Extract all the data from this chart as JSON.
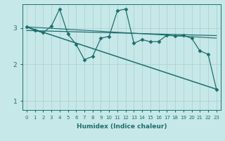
{
  "xlabel": "Humidex (Indice chaleur)",
  "bg_color": "#c6e8e8",
  "grid_color": "#b0cccc",
  "line_color": "#1e6e6e",
  "xlim": [
    -0.5,
    23.5
  ],
  "ylim": [
    0.75,
    3.65
  ],
  "yticks": [
    1,
    2,
    3
  ],
  "xticks": [
    0,
    1,
    2,
    3,
    4,
    5,
    6,
    7,
    8,
    9,
    10,
    11,
    12,
    13,
    14,
    15,
    16,
    17,
    18,
    19,
    20,
    21,
    22,
    23
  ],
  "series": [
    {
      "x": [
        0,
        1,
        2,
        3,
        4,
        5,
        6,
        7,
        8,
        9,
        10,
        11,
        12,
        13,
        14,
        15,
        16,
        17,
        18,
        19,
        20,
        21,
        22,
        23
      ],
      "y": [
        3.03,
        2.93,
        2.87,
        3.05,
        3.52,
        2.83,
        2.55,
        2.13,
        2.22,
        2.72,
        2.77,
        3.47,
        3.52,
        2.58,
        2.68,
        2.62,
        2.63,
        2.8,
        2.78,
        2.79,
        2.72,
        2.37,
        2.28,
        1.32
      ],
      "marker": "D",
      "markersize": 2.5,
      "linewidth": 0.9
    },
    {
      "x": [
        0,
        23
      ],
      "y": [
        3.03,
        1.32
      ],
      "marker": null,
      "linewidth": 1.1
    },
    {
      "x": [
        0,
        23
      ],
      "y": [
        2.93,
        2.79
      ],
      "marker": null,
      "linewidth": 0.9
    },
    {
      "x": [
        0,
        23
      ],
      "y": [
        3.03,
        2.72
      ],
      "marker": null,
      "linewidth": 0.8
    }
  ],
  "xlabel_fontsize": 6.5,
  "xlabel_fontweight": "bold",
  "xtick_fontsize": 5.0,
  "ytick_fontsize": 6.5
}
